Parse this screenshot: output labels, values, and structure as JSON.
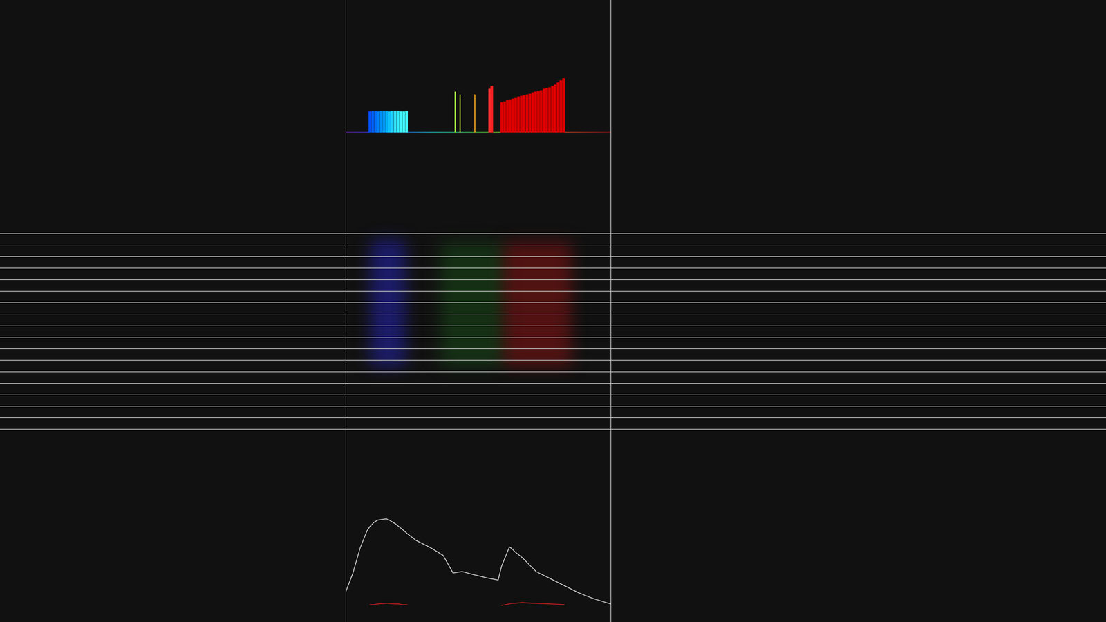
{
  "chart_data": [
    {
      "type": "bar",
      "x": [
        34,
        38,
        42,
        46,
        50,
        54,
        58,
        62,
        66,
        70,
        74,
        78,
        82,
        86,
        155,
        162,
        183,
        204,
        207,
        221,
        225,
        229,
        233,
        237,
        241,
        245,
        249,
        253,
        257,
        261,
        265,
        269,
        273,
        277,
        281,
        285,
        289,
        293,
        297,
        301,
        305,
        309
      ],
      "values": [
        30,
        31,
        31,
        30,
        31,
        31,
        31,
        30,
        31,
        31,
        31,
        30,
        30,
        31,
        58,
        54,
        54,
        62,
        66,
        43,
        44,
        46,
        47,
        48,
        49,
        51,
        52,
        53,
        54,
        55,
        57,
        58,
        59,
        60,
        62,
        63,
        64,
        66,
        68,
        71,
        74,
        77
      ],
      "colors": [
        "#0050ff",
        "#0060ff",
        "#0070ff",
        "#0080ff",
        "#0090ff",
        "#00a0ff",
        "#00b0ff",
        "#10c0ff",
        "#20d0ff",
        "#30e0ff",
        "#30e8ff",
        "#40f0ff",
        "#40f8ff",
        "#40ffff",
        "#a8ff40",
        "#d8ff30",
        "#ffb020",
        "#ff3030",
        "#ff2020",
        "#dd0000",
        "#dd0000",
        "#dd0000",
        "#dd0000",
        "#dd0000",
        "#dd0000",
        "#dd0000",
        "#dd0000",
        "#dd0000",
        "#dd0000",
        "#dd0000",
        "#dd0000",
        "#dd0000",
        "#dd0000",
        "#dd0000",
        "#dd0000",
        "#dd0000",
        "#dd0000",
        "#dd0000",
        "#dd0000",
        "#dd0000",
        "#dd0000",
        "#dd0000"
      ],
      "xlim": [
        0,
        376
      ],
      "ylim": [
        0,
        188
      ],
      "tick_labels": false
    },
    {
      "type": "line",
      "x": [
        0,
        10,
        20,
        30,
        34,
        40,
        45,
        57,
        60,
        70,
        75,
        80,
        87,
        100,
        120,
        138,
        152,
        165,
        180,
        200,
        216,
        221,
        232,
        235,
        240,
        250,
        265,
        270,
        290,
        310,
        330,
        350,
        376
      ],
      "series": [
        {
          "color": "#dddddd",
          "values": [
            44,
            70,
            105,
            130,
            136,
            142,
            145,
            147,
            146,
            140,
            136,
            132,
            126,
            116,
            106,
            95,
            70,
            72,
            68,
            63,
            60,
            80,
            107,
            105,
            100,
            92,
            77,
            72,
            62,
            52,
            42,
            34,
            26
          ]
        },
        {
          "color": "#cc2020",
          "values": [
            null,
            null,
            null,
            null,
            25,
            25,
            26,
            27,
            27,
            26,
            26,
            25,
            25,
            null,
            null,
            null,
            null,
            null,
            null,
            null,
            null,
            24,
            26,
            27,
            27,
            28,
            27,
            27,
            26,
            25,
            null,
            null,
            null
          ]
        }
      ],
      "xlim": [
        0,
        376
      ],
      "ylim": [
        0,
        274
      ],
      "tick_labels": false
    }
  ]
}
